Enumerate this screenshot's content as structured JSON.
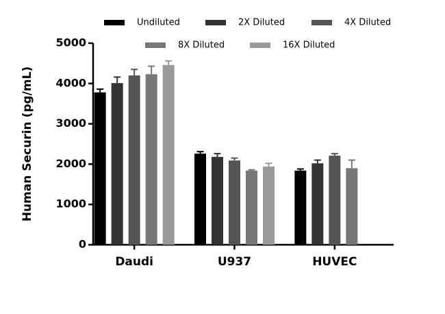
{
  "chart_data": {
    "type": "bar",
    "y_label": "Human Securin (pg/mL)",
    "categories": [
      "Daudi",
      "U937",
      "HUVEC"
    ],
    "series": [
      {
        "name": "Undiluted",
        "color": "#000000",
        "values": [
          3780,
          2260,
          1840
        ],
        "errors": [
          80,
          50,
          40
        ]
      },
      {
        "name": "2X Diluted",
        "color": "#333333",
        "values": [
          4010,
          2180,
          2020
        ],
        "errors": [
          150,
          80,
          80
        ]
      },
      {
        "name": "4X Diluted",
        "color": "#555555",
        "values": [
          4200,
          2090,
          2210
        ],
        "errors": [
          150,
          60,
          50
        ]
      },
      {
        "name": "8X Diluted",
        "color": "#777777",
        "values": [
          4230,
          1840,
          1900
        ],
        "errors": [
          200,
          20,
          200
        ]
      },
      {
        "name": "16X Diluted",
        "color": "#999999",
        "values": [
          4460,
          1940,
          null
        ],
        "errors": [
          100,
          80,
          null
        ]
      }
    ],
    "ylim": [
      0,
      5000
    ],
    "yticks": [
      0,
      1000,
      2000,
      3000,
      4000,
      5000
    ]
  }
}
